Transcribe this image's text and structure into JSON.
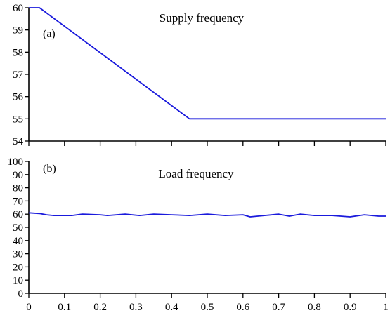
{
  "chart_data": [
    {
      "type": "line",
      "panel_label": "(a)",
      "title": "Supply frequency",
      "xlabel": "",
      "ylabel": "",
      "xlim": [
        0,
        1
      ],
      "ylim": [
        54,
        60
      ],
      "x_ticks": [
        0,
        0.1,
        0.2,
        0.3,
        0.4,
        0.5,
        0.6,
        0.7,
        0.8,
        0.9,
        1
      ],
      "x_tick_labels_shown": false,
      "y_ticks": [
        54,
        55,
        56,
        57,
        58,
        59,
        60
      ],
      "y_tick_labels": [
        "54",
        "55",
        "56",
        "57",
        "58",
        "59",
        "60"
      ],
      "grid": false,
      "color": "#1a1adc",
      "series": [
        {
          "x": [
            0,
            0.03,
            0.45,
            1.0
          ],
          "y": [
            60,
            60,
            55,
            55
          ]
        }
      ]
    },
    {
      "type": "line",
      "panel_label": "(b)",
      "title": "Load frequency",
      "xlabel": "",
      "ylabel": "",
      "xlim": [
        0,
        1
      ],
      "ylim": [
        0,
        100
      ],
      "x_ticks": [
        0,
        0.1,
        0.2,
        0.3,
        0.4,
        0.5,
        0.6,
        0.7,
        0.8,
        0.9,
        1
      ],
      "x_tick_labels": [
        "0",
        "0.1",
        "0.2",
        "0.3",
        "0.4",
        "0.5",
        "0.6",
        "0.7",
        "0.8",
        "0.9",
        "1"
      ],
      "y_ticks": [
        0,
        10,
        20,
        30,
        40,
        50,
        60,
        70,
        80,
        90,
        100
      ],
      "y_tick_labels": [
        "0",
        "10",
        "20",
        "30",
        "40",
        "50",
        "60",
        "70",
        "80",
        "90",
        "100"
      ],
      "grid": false,
      "color": "#1a1adc",
      "series": [
        {
          "x": [
            0,
            0.03,
            0.05,
            0.07,
            0.12,
            0.15,
            0.2,
            0.22,
            0.27,
            0.31,
            0.35,
            0.4,
            0.45,
            0.5,
            0.55,
            0.6,
            0.62,
            0.66,
            0.7,
            0.73,
            0.76,
            0.8,
            0.85,
            0.9,
            0.94,
            0.98,
            1.0
          ],
          "y": [
            61,
            60.5,
            59.5,
            59,
            59,
            60,
            59.5,
            59,
            60,
            59,
            60,
            59.5,
            59,
            60,
            59,
            59.5,
            58,
            59,
            60,
            58.5,
            60,
            59,
            59,
            58,
            59.5,
            58.5,
            58.5
          ]
        }
      ]
    }
  ]
}
